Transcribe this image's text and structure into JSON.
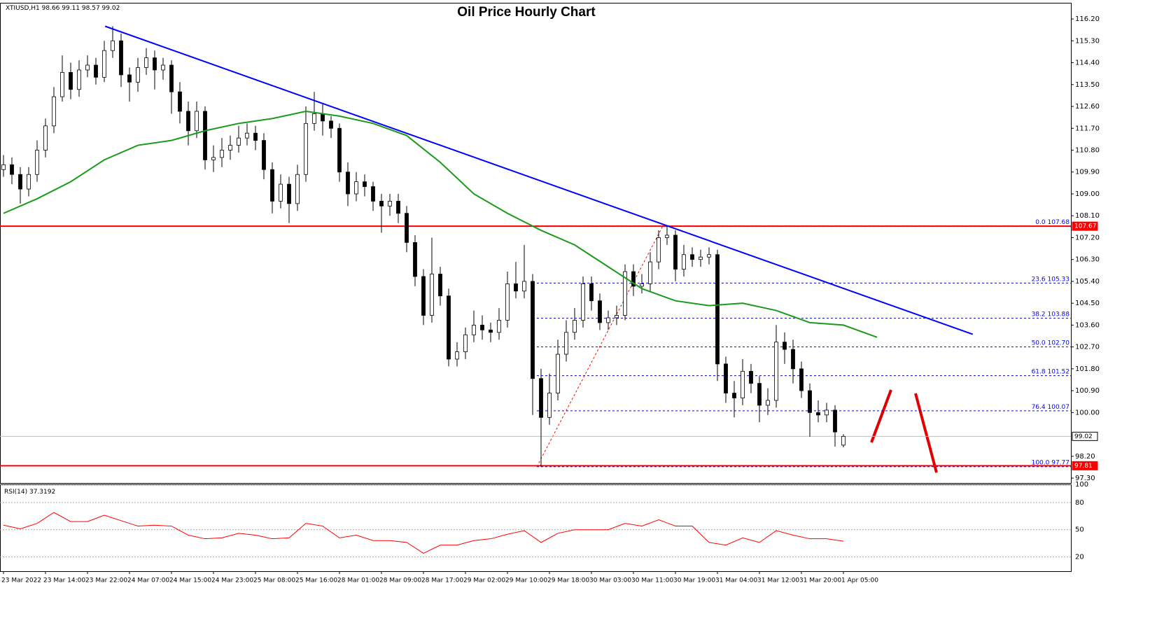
{
  "chart_data": {
    "type": "candlestick",
    "title": "Oil Price Hourly Chart",
    "symbol": "XTIUSD,H1",
    "ylim": [
      97.1,
      116.75
    ],
    "yticks": [
      {
        "value": 116.2,
        "label": "116.20"
      },
      {
        "value": 115.3,
        "label": "115.30"
      },
      {
        "value": 114.4,
        "label": "114.40"
      },
      {
        "value": 113.5,
        "label": "113.50"
      },
      {
        "value": 112.6,
        "label": "112.60"
      },
      {
        "value": 111.7,
        "label": "111.70"
      },
      {
        "value": 110.8,
        "label": "110.80"
      },
      {
        "value": 109.9,
        "label": "109.90"
      },
      {
        "value": 109,
        "label": "109.00"
      },
      {
        "value": 108.1,
        "label": "108.10"
      },
      {
        "value": 107.2,
        "label": "107.20"
      },
      {
        "value": 106.3,
        "label": "106.30"
      },
      {
        "value": 105.4,
        "label": "105.40"
      },
      {
        "value": 104.5,
        "label": "104.50"
      },
      {
        "value": 103.6,
        "label": "103.60"
      },
      {
        "value": 102.7,
        "label": "102.70"
      },
      {
        "value": 101.8,
        "label": "101.80"
      },
      {
        "value": 100.9,
        "label": "100.90"
      },
      {
        "value": 100,
        "label": "100.00"
      },
      {
        "value": 98.2,
        "label": "98.20"
      },
      {
        "value": 97.3,
        "label": "97.30"
      }
    ],
    "x_labels": [
      "23 Mar 2022",
      "23 Mar 14:00",
      "23 Mar 22:00",
      "24 Mar 07:00",
      "24 Mar 15:00",
      "24 Mar 23:00",
      "25 Mar 08:00",
      "25 Mar 16:00",
      "28 Mar 01:00",
      "28 Mar 09:00",
      "28 Mar 17:00",
      "29 Mar 02:00",
      "29 Mar 10:00",
      "29 Mar 18:00",
      "30 Mar 03:00",
      "30 Mar 11:00",
      "30 Mar 19:00",
      "31 Mar 04:00",
      "31 Mar 12:00",
      "31 Mar 20:00",
      "1 Apr 05:00"
    ],
    "ohlc": [
      [
        110.0,
        110.6,
        109.7,
        110.2
      ],
      [
        110.2,
        110.5,
        109.4,
        109.8
      ],
      [
        109.8,
        110.1,
        108.6,
        109.2
      ],
      [
        109.2,
        110.1,
        108.9,
        109.8
      ],
      [
        109.8,
        111.2,
        109.5,
        110.8
      ],
      [
        110.8,
        112.1,
        110.5,
        111.8
      ],
      [
        111.8,
        113.4,
        111.5,
        113.0
      ],
      [
        113.0,
        114.7,
        112.8,
        114.0
      ],
      [
        114.0,
        114.4,
        112.9,
        113.3
      ],
      [
        113.3,
        114.5,
        113.0,
        114.1
      ],
      [
        114.1,
        114.7,
        113.8,
        114.3
      ],
      [
        114.3,
        114.6,
        113.5,
        113.8
      ],
      [
        113.8,
        115.3,
        113.6,
        114.9
      ],
      [
        114.9,
        115.9,
        114.6,
        115.3
      ],
      [
        115.3,
        115.6,
        113.4,
        113.9
      ],
      [
        113.9,
        114.2,
        112.8,
        113.6
      ],
      [
        113.6,
        114.6,
        113.2,
        114.2
      ],
      [
        114.2,
        115.0,
        113.9,
        114.6
      ],
      [
        114.6,
        114.9,
        113.3,
        114.1
      ],
      [
        114.1,
        114.6,
        113.7,
        114.3
      ],
      [
        114.3,
        114.5,
        112.3,
        113.2
      ],
      [
        113.2,
        113.6,
        111.9,
        112.4
      ],
      [
        112.4,
        112.8,
        111.0,
        111.6
      ],
      [
        111.6,
        112.8,
        111.3,
        112.4
      ],
      [
        112.4,
        112.6,
        110.0,
        110.4
      ],
      [
        110.4,
        111.0,
        109.9,
        110.5
      ],
      [
        110.5,
        111.3,
        110.1,
        110.8
      ],
      [
        110.8,
        111.4,
        110.4,
        111.0
      ],
      [
        111.0,
        111.8,
        110.7,
        111.3
      ],
      [
        111.3,
        111.9,
        111.0,
        111.5
      ],
      [
        111.5,
        111.8,
        110.8,
        111.2
      ],
      [
        111.2,
        111.5,
        109.6,
        110.0
      ],
      [
        110.0,
        110.3,
        108.2,
        108.7
      ],
      [
        108.7,
        109.8,
        108.4,
        109.4
      ],
      [
        109.4,
        109.7,
        107.8,
        108.6
      ],
      [
        108.6,
        110.2,
        108.3,
        109.8
      ],
      [
        109.8,
        112.6,
        109.5,
        111.9
      ],
      [
        111.9,
        113.2,
        111.6,
        112.3
      ],
      [
        112.3,
        112.7,
        111.4,
        112.0
      ],
      [
        112.0,
        112.2,
        111.3,
        111.7
      ],
      [
        111.7,
        111.9,
        109.5,
        109.9
      ],
      [
        109.9,
        110.3,
        108.5,
        109.0
      ],
      [
        109.0,
        109.9,
        108.7,
        109.5
      ],
      [
        109.5,
        109.8,
        108.9,
        109.3
      ],
      [
        109.3,
        109.5,
        108.3,
        108.7
      ],
      [
        108.7,
        109.0,
        107.4,
        108.5
      ],
      [
        108.5,
        109.0,
        108.1,
        108.7
      ],
      [
        108.7,
        109.0,
        107.8,
        108.2
      ],
      [
        108.2,
        108.5,
        106.6,
        107.0
      ],
      [
        107.0,
        107.3,
        105.2,
        105.6
      ],
      [
        105.6,
        105.9,
        103.6,
        104.0
      ],
      [
        104.0,
        107.2,
        103.7,
        105.7
      ],
      [
        105.7,
        106.0,
        104.4,
        104.8
      ],
      [
        104.8,
        105.1,
        101.9,
        102.2
      ],
      [
        102.2,
        102.9,
        101.9,
        102.5
      ],
      [
        102.5,
        103.5,
        102.2,
        103.2
      ],
      [
        103.2,
        104.2,
        102.9,
        103.6
      ],
      [
        103.6,
        104.0,
        103.0,
        103.4
      ],
      [
        103.4,
        103.7,
        102.9,
        103.3
      ],
      [
        103.3,
        104.3,
        103.0,
        103.8
      ],
      [
        103.8,
        105.8,
        103.5,
        105.3
      ],
      [
        105.3,
        106.2,
        104.7,
        105.0
      ],
      [
        105.0,
        106.9,
        104.7,
        105.4
      ],
      [
        105.4,
        105.7,
        99.9,
        101.4
      ],
      [
        101.4,
        101.8,
        97.77,
        99.8
      ],
      [
        99.8,
        101.6,
        99.5,
        100.8
      ],
      [
        100.8,
        103.0,
        100.5,
        102.4
      ],
      [
        102.4,
        103.8,
        102.1,
        103.3
      ],
      [
        103.3,
        104.3,
        103.0,
        103.8
      ],
      [
        103.8,
        105.6,
        103.5,
        105.3
      ],
      [
        105.3,
        105.6,
        104.2,
        104.6
      ],
      [
        104.6,
        104.9,
        103.4,
        103.7
      ],
      [
        103.7,
        104.2,
        103.4,
        103.9
      ],
      [
        103.9,
        104.4,
        103.6,
        104.0
      ],
      [
        104.0,
        106.1,
        103.8,
        105.8
      ],
      [
        105.8,
        106.1,
        104.8,
        105.2
      ],
      [
        105.2,
        105.7,
        104.9,
        105.3
      ],
      [
        105.3,
        106.6,
        105.0,
        106.2
      ],
      [
        106.2,
        107.5,
        105.9,
        107.2
      ],
      [
        107.2,
        107.68,
        106.9,
        107.3
      ],
      [
        107.3,
        107.5,
        105.4,
        105.9
      ],
      [
        105.9,
        106.9,
        105.6,
        106.5
      ],
      [
        106.5,
        106.8,
        106.0,
        106.3
      ],
      [
        106.3,
        106.7,
        106.0,
        106.4
      ],
      [
        106.4,
        106.8,
        106.1,
        106.5
      ],
      [
        106.5,
        106.7,
        101.3,
        102.0
      ],
      [
        102.0,
        102.3,
        100.4,
        100.8
      ],
      [
        100.8,
        101.3,
        99.8,
        100.6
      ],
      [
        100.6,
        102.2,
        100.3,
        101.7
      ],
      [
        101.7,
        102.0,
        100.8,
        101.2
      ],
      [
        101.2,
        101.5,
        99.6,
        100.3
      ],
      [
        100.3,
        101.0,
        99.9,
        100.5
      ],
      [
        100.5,
        103.6,
        100.2,
        102.9
      ],
      [
        102.9,
        103.3,
        102.0,
        102.6
      ],
      [
        102.6,
        103.0,
        101.2,
        101.8
      ],
      [
        101.8,
        102.1,
        100.6,
        100.9
      ],
      [
        100.9,
        101.2,
        99.0,
        100.0
      ],
      [
        100.0,
        100.5,
        99.6,
        99.9
      ],
      [
        99.9,
        100.4,
        99.6,
        100.1
      ],
      [
        100.1,
        100.3,
        98.6,
        99.2
      ],
      [
        98.66,
        99.11,
        98.57,
        99.02
      ]
    ],
    "ma": {
      "color": "#1a9a1a",
      "x": [
        0,
        4,
        8,
        12,
        16,
        20,
        24,
        28,
        32,
        36,
        40,
        44,
        48,
        52,
        56,
        60,
        64,
        68,
        72,
        76,
        80,
        84,
        88,
        92,
        96,
        100,
        104
      ],
      "values": [
        108.2,
        108.8,
        109.5,
        110.4,
        111.0,
        111.2,
        111.6,
        111.9,
        112.1,
        112.4,
        112.2,
        111.9,
        111.4,
        110.3,
        109.0,
        108.2,
        107.5,
        106.9,
        106.0,
        105.1,
        104.6,
        104.4,
        104.5,
        104.2,
        103.7,
        103.6,
        103.1
      ]
    },
    "trendline": {
      "color": "#0000ff",
      "x": [
        12.1,
        115.4
      ],
      "values": [
        115.9,
        103.22
      ]
    },
    "hlines": [
      {
        "price": 107.67,
        "color": "#ff0000"
      },
      {
        "price": 97.81,
        "color": "#ff0000"
      },
      {
        "price": 99.02,
        "color": "#c0c0c0"
      }
    ],
    "fib": {
      "color": "#0000ff",
      "from_x": 63.5,
      "levels": [
        {
          "level": {
            "value": 0,
            "label": "0.0"
          },
          "price": 107.68
        },
        {
          "level": 23.6,
          "price": 105.33
        },
        {
          "level": 38.2,
          "price": 103.88
        },
        {
          "level": {
            "value": 50,
            "label": "50.0"
          },
          "price": {
            "value": 102.7,
            "label": "102.70"
          }
        },
        {
          "level": 61.8,
          "price": 101.52
        },
        {
          "level": 76.4,
          "price": 100.07
        },
        {
          "level": {
            "value": 100,
            "label": "100.0"
          },
          "price": 97.77
        }
      ]
    },
    "rsi": {
      "name": "RSI(14)",
      "color": "#ff0000",
      "ylim": [
        5,
        100
      ],
      "yticks": [
        100,
        80,
        50,
        20
      ],
      "x": [
        0,
        2,
        4,
        6,
        8,
        10,
        12,
        14,
        16,
        18,
        20,
        22,
        24,
        26,
        28,
        30,
        32,
        34,
        36,
        38,
        40,
        42,
        44,
        46,
        48,
        50,
        52,
        54,
        56,
        58,
        60,
        62,
        64,
        66,
        68,
        70,
        72,
        74,
        76,
        78,
        80,
        82,
        84,
        86,
        88,
        90,
        92,
        94,
        96,
        98,
        100
      ],
      "values": [
        55,
        51,
        57,
        69,
        59,
        59,
        66,
        60,
        54,
        55,
        54,
        44,
        40,
        41,
        46,
        44,
        40,
        41,
        57,
        54,
        41,
        44,
        38,
        38,
        36,
        24,
        33,
        33,
        38,
        40,
        45,
        49,
        36,
        46,
        50,
        50,
        50,
        57,
        54,
        61,
        54,
        54,
        36,
        33,
        41,
        36,
        49,
        44,
        40,
        40,
        37.3192
      ]
    }
  }
}
